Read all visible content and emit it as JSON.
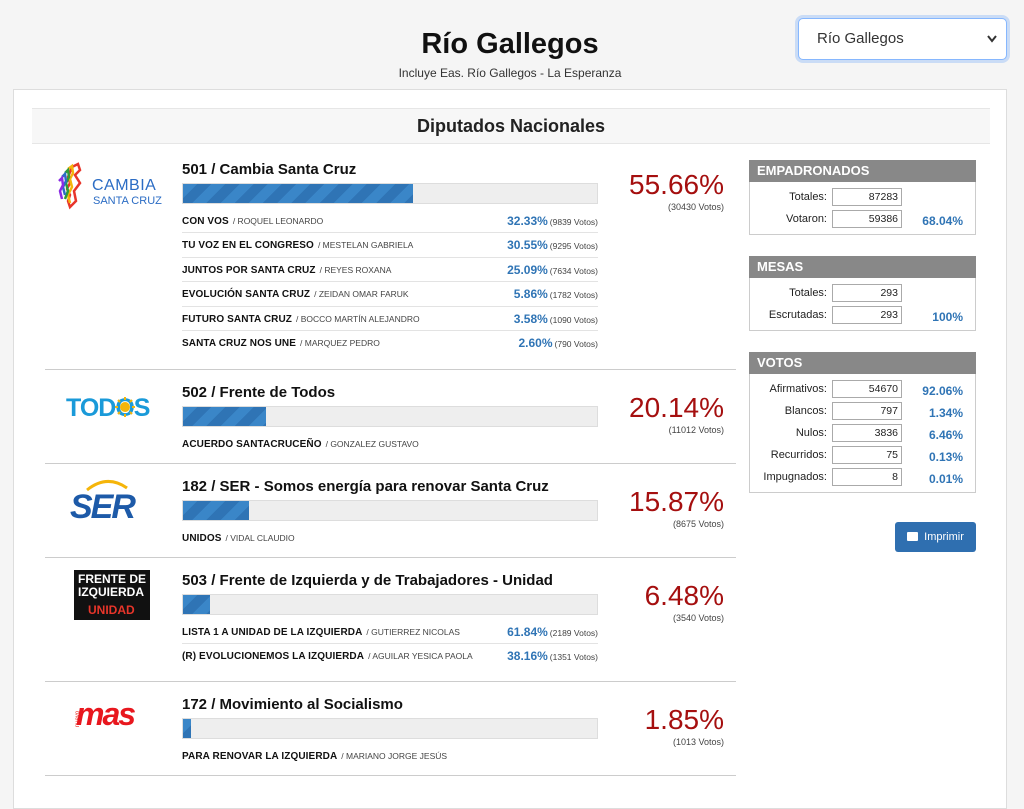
{
  "header": {
    "title": "Río Gallegos",
    "subtitle": "Incluye Eas. Río Gallegos - La Esperanza",
    "select_value": "Río Gallegos"
  },
  "section_title": "Diputados Nacionales",
  "parties": [
    {
      "name": "501 / Cambia Santa Cruz",
      "pct": "55.66%",
      "votes": "(30430 Votos)",
      "bar": 55.66,
      "logo": {
        "line1": "CAMBIA",
        "line2": "SANTA CRUZ"
      },
      "lists": [
        {
          "name": "CON VOS",
          "cand": "/ ROQUEL LEONARDO",
          "pct": "32.33%",
          "votes": "(9839 Votos)"
        },
        {
          "name": "TU VOZ EN EL CONGRESO",
          "cand": "/ MESTELAN GABRIELA",
          "pct": "30.55%",
          "votes": "(9295 Votos)"
        },
        {
          "name": "JUNTOS POR SANTA CRUZ",
          "cand": "/ REYES ROXANA",
          "pct": "25.09%",
          "votes": "(7634 Votos)"
        },
        {
          "name": "EVOLUCIÓN SANTA CRUZ",
          "cand": "/ ZEIDAN OMAR FARUK",
          "pct": "5.86%",
          "votes": "(1782 Votos)"
        },
        {
          "name": "FUTURO SANTA CRUZ",
          "cand": "/ BOCCO MARTÍN ALEJANDRO",
          "pct": "3.58%",
          "votes": "(1090 Votos)"
        },
        {
          "name": "SANTA CRUZ NOS UNE",
          "cand": "/ MARQUEZ PEDRO",
          "pct": "2.60%",
          "votes": "(790 Votos)"
        }
      ]
    },
    {
      "name": "502 / Frente de Todos",
      "pct": "20.14%",
      "votes": "(11012 Votos)",
      "bar": 20.14,
      "logo": {
        "text": "TODOS"
      },
      "lists": [
        {
          "name": "ACUERDO SANTACRUCEÑO",
          "cand": "/ GONZALEZ GUSTAVO",
          "pct": "",
          "votes": ""
        }
      ]
    },
    {
      "name": "182 / SER - Somos energía para renovar Santa Cruz",
      "pct": "15.87%",
      "votes": "(8675 Votos)",
      "bar": 15.87,
      "logo": {
        "text": "SER"
      },
      "lists": [
        {
          "name": "UNIDOS",
          "cand": "/ VIDAL CLAUDIO",
          "pct": "",
          "votes": ""
        }
      ]
    },
    {
      "name": "503 / Frente de Izquierda y de Trabajadores - Unidad",
      "pct": "6.48%",
      "votes": "(3540 Votos)",
      "bar": 6.48,
      "logo": {
        "line1": "FRENTE DE",
        "line2": "IZQUIERDA",
        "line3": "UNIDAD"
      },
      "lists": [
        {
          "name": "LISTA 1 A UNIDAD DE LA IZQUIERDA",
          "cand": "/ GUTIERREZ NICOLAS",
          "pct": "61.84%",
          "votes": "(2189 Votos)"
        },
        {
          "name": "(R) EVOLUCIONEMOS LA IZQUIERDA",
          "cand": "/ AGUILAR YESICA PAOLA",
          "pct": "38.16%",
          "votes": "(1351 Votos)"
        }
      ]
    },
    {
      "name": "172 / Movimiento al Socialismo",
      "pct": "1.85%",
      "votes": "(1013 Votos)",
      "bar": 1.85,
      "logo": {
        "text": "mas",
        "small": "nuevo"
      },
      "lists": [
        {
          "name": "PARA RENOVAR LA IZQUIERDA",
          "cand": "/ MARIANO JORGE JESÚS",
          "pct": "",
          "votes": ""
        }
      ]
    }
  ],
  "stats": {
    "empadronados": {
      "title": "EMPADRONADOS",
      "rows": [
        {
          "label": "Totales:",
          "value": "87283",
          "pct": ""
        },
        {
          "label": "Votaron:",
          "value": "59386",
          "pct": "68.04%"
        }
      ]
    },
    "mesas": {
      "title": "MESAS",
      "rows": [
        {
          "label": "Totales:",
          "value": "293",
          "pct": ""
        },
        {
          "label": "Escrutadas:",
          "value": "293",
          "pct": "100%"
        }
      ]
    },
    "votos": {
      "title": "VOTOS",
      "rows": [
        {
          "label": "Afirmativos:",
          "value": "54670",
          "pct": "92.06%"
        },
        {
          "label": "Blancos:",
          "value": "797",
          "pct": "1.34%"
        },
        {
          "label": "Nulos:",
          "value": "3836",
          "pct": "6.46%"
        },
        {
          "label": "Recurridos:",
          "value": "75",
          "pct": "0.13%"
        },
        {
          "label": "Impugnados:",
          "value": "8",
          "pct": "0.01%"
        }
      ]
    }
  },
  "print_label": "Imprimir",
  "colors": {
    "accent": "#2f74b5",
    "pct_red": "#a50f0f",
    "box_head": "#888888",
    "button": "#2f6fb0"
  }
}
